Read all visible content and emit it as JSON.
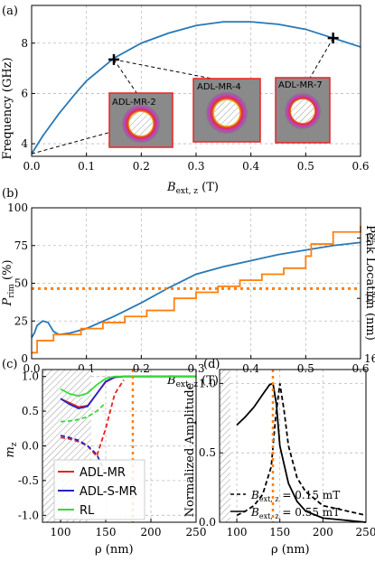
{
  "chart_data": [
    {
      "panel": "(a)",
      "type": "line",
      "xlabel": "B_ext,z (T)",
      "ylabel": "Frequency (GHz)",
      "xlim": [
        0.0,
        0.6
      ],
      "ylim": [
        3.5,
        9.5
      ],
      "xticks": [
        "0.0",
        "0.1",
        "0.2",
        "0.3",
        "0.4",
        "0.5",
        "0.6"
      ],
      "yticks": [
        "4",
        "6",
        "8"
      ],
      "grid": true,
      "series": [
        {
          "name": "",
          "color": "#2878b5",
          "x": [
            0.0,
            0.02,
            0.05,
            0.08,
            0.1,
            0.15,
            0.2,
            0.25,
            0.3,
            0.35,
            0.4,
            0.45,
            0.5,
            0.55,
            0.6
          ],
          "y": [
            3.6,
            4.3,
            5.2,
            6.0,
            6.5,
            7.4,
            8.0,
            8.4,
            8.7,
            8.85,
            8.85,
            8.75,
            8.55,
            8.2,
            7.85
          ]
        }
      ],
      "markers": [
        {
          "x": 0.15,
          "y": 7.35
        },
        {
          "x": 0.55,
          "y": 8.2
        }
      ],
      "insets": [
        "ADL-MR-2",
        "ADL-MR-4",
        "ADL-MR-7"
      ]
    },
    {
      "panel": "(b)",
      "type": "line",
      "xlabel": "B_ext,z (T)",
      "ylabel_left": "P_rim (%)",
      "ylabel_right": "Peak Location (nm)",
      "xlim": [
        0.0,
        0.6
      ],
      "ylim_left": [
        0,
        100
      ],
      "ylim_right": [
        160,
        135
      ],
      "xticks": [
        "0.0",
        "0.1",
        "0.2",
        "0.3",
        "0.4",
        "0.5",
        "0.6"
      ],
      "yticks_left": [
        "0",
        "25",
        "50",
        "75",
        "100"
      ],
      "yticks_right": [
        "140",
        "150",
        "160"
      ],
      "grid": true,
      "series": [
        {
          "name": "",
          "color": "#2878b5",
          "axis": "left",
          "x": [
            0.0,
            0.005,
            0.01,
            0.02,
            0.03,
            0.04,
            0.05,
            0.07,
            0.1,
            0.15,
            0.2,
            0.25,
            0.3,
            0.35,
            0.4,
            0.45,
            0.5,
            0.55,
            0.6
          ],
          "y": [
            14,
            17,
            22,
            25,
            24,
            18,
            16,
            17,
            20,
            28,
            37,
            47,
            56,
            61,
            65,
            69,
            72,
            75,
            77
          ]
        },
        {
          "name": "",
          "color": "#ff7f0e",
          "axis": "right",
          "step": true,
          "x": [
            0.0,
            0.01,
            0.04,
            0.09,
            0.13,
            0.17,
            0.21,
            0.26,
            0.3,
            0.34,
            0.38,
            0.42,
            0.46,
            0.5,
            0.51,
            0.55,
            0.6
          ],
          "y": [
            159,
            157,
            156,
            155,
            154,
            153,
            152,
            150,
            149,
            148,
            147,
            146,
            145,
            143,
            141,
            139,
            138
          ]
        },
        {
          "name": "",
          "color": "#ff7f0e",
          "axis": "left",
          "dotted": true,
          "x": [
            0.0,
            0.6
          ],
          "y": [
            46.5,
            46.5
          ]
        }
      ]
    },
    {
      "panel": "(c)",
      "type": "line",
      "xlabel": "ρ (nm)",
      "ylabel": "m_z",
      "xlim": [
        80,
        250
      ],
      "ylim": [
        -1.1,
        1.1
      ],
      "xticks": [
        "100",
        "150",
        "200",
        "250"
      ],
      "yticks": [
        "-1.0",
        "-0.5",
        "0.0",
        "0.5",
        "1.0"
      ],
      "grid": true,
      "legend": [
        "ADL-MR",
        "ADL-S-MR",
        "RL"
      ],
      "legend_position": "bottom-left",
      "series": [
        {
          "name": "ADL-MR",
          "color": "#e8231e",
          "x": [
            100,
            110,
            120,
            130,
            140,
            150,
            160,
            170,
            180,
            200,
            250
          ],
          "y": [
            0.68,
            0.62,
            0.56,
            0.58,
            0.75,
            0.92,
            0.99,
            1.0,
            1.0,
            1.0,
            1.0
          ]
        },
        {
          "name": "ADL-MR",
          "color": "#e8231e",
          "dashed": true,
          "x": [
            100,
            110,
            120,
            130,
            140,
            150,
            160,
            170
          ],
          "y": [
            0.12,
            0.1,
            0.06,
            0.0,
            -0.15,
            0.25,
            0.75,
            0.95
          ]
        },
        {
          "name": "ADL-S-MR",
          "color": "#2424c8",
          "x": [
            100,
            110,
            120,
            130,
            140,
            150,
            160,
            170,
            200,
            250
          ],
          "y": [
            0.68,
            0.6,
            0.54,
            0.57,
            0.75,
            0.93,
            0.99,
            1.0,
            1.0,
            1.0
          ]
        },
        {
          "name": "ADL-S-MR",
          "color": "#2424c8",
          "dashed": true,
          "x": [
            100,
            110,
            120,
            130,
            140,
            148
          ],
          "y": [
            0.15,
            0.12,
            0.08,
            0.0,
            -0.12,
            -0.35
          ]
        },
        {
          "name": "RL",
          "color": "#33dd33",
          "x": [
            100,
            110,
            120,
            130,
            140,
            150,
            160,
            170,
            200,
            250
          ],
          "y": [
            0.82,
            0.75,
            0.72,
            0.76,
            0.88,
            0.97,
            1.0,
            1.0,
            1.0,
            1.0
          ]
        },
        {
          "name": "RL",
          "color": "#33dd33",
          "dashed": true,
          "x": [
            100,
            110,
            120,
            130,
            140,
            150
          ],
          "y": [
            0.35,
            0.36,
            0.38,
            0.42,
            0.5,
            0.62
          ]
        }
      ]
    },
    {
      "panel": "(d)",
      "type": "line",
      "xlabel": "ρ (nm)",
      "ylabel": "Normalized Amplitude",
      "xlim": [
        80,
        250
      ],
      "ylim": [
        0.0,
        1.1
      ],
      "xticks": [
        "100",
        "150",
        "200",
        "250"
      ],
      "yticks": [
        "0.0",
        "0.5",
        "1.0"
      ],
      "grid": true,
      "legend_position": "bottom-right",
      "series": [
        {
          "name": "B_ext,z = 0.15 mT",
          "color": "#000000",
          "dashed": true,
          "x": [
            100,
            110,
            120,
            130,
            140,
            145,
            150,
            155,
            160,
            170,
            180,
            200,
            250
          ],
          "y": [
            0.05,
            0.08,
            0.12,
            0.2,
            0.4,
            0.75,
            1.0,
            0.8,
            0.55,
            0.32,
            0.22,
            0.12,
            0.05
          ]
        },
        {
          "name": "B_ext,z = 0.55 mT",
          "color": "#000000",
          "x": [
            100,
            110,
            120,
            130,
            138,
            142,
            146,
            150,
            160,
            170,
            180,
            200,
            250
          ],
          "y": [
            0.7,
            0.76,
            0.83,
            0.92,
            0.99,
            1.0,
            0.85,
            0.55,
            0.28,
            0.15,
            0.08,
            0.03,
            0.0
          ]
        }
      ]
    }
  ],
  "panels": {
    "a": "(a)",
    "b": "(b)",
    "c": "(c)",
    "d": "(d)"
  },
  "labels": {
    "a_x_main": "B",
    "a_x_sub": "ext, z",
    "a_x_unit": " (T)",
    "a_y": "Frequency (GHz)",
    "b_x_main": "B",
    "b_x_sub": "ext, z",
    "b_x_unit": " (T)",
    "b_y_main": "P",
    "b_y_sub": "rim",
    "b_y_unit": " (%)",
    "b_y2": "Peak Location (nm)",
    "c_x": "ρ (nm)",
    "c_y_main": "m",
    "c_y_sub": "z",
    "d_x": "ρ (nm)",
    "d_y": "Normalized Amplitude",
    "legend_c": [
      "ADL-MR",
      "ADL-S-MR",
      "RL"
    ],
    "legend_d_1_main": "B",
    "legend_d_1_sub": "ext, z",
    "legend_d_1_rest": " = 0.15 mT",
    "legend_d_2_main": "B",
    "legend_d_2_sub": "ext, z",
    "legend_d_2_rest": " = 0.55 mT",
    "inset_1": "ADL-MR-2",
    "inset_2": "ADL-MR-4",
    "inset_3": "ADL-MR-7"
  },
  "colors": {
    "blue": "#2878b5",
    "orange": "#ff7f0e",
    "red": "#e8231e",
    "navy": "#2424c8",
    "green": "#33dd33"
  }
}
